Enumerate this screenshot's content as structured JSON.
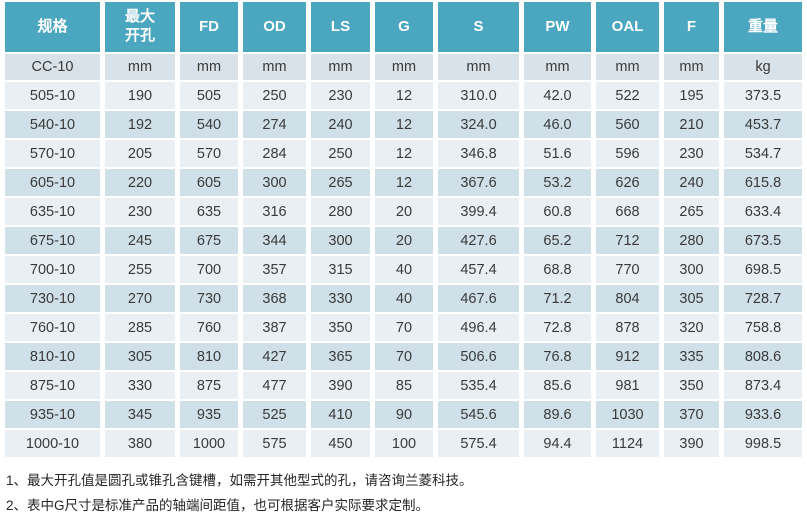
{
  "colors": {
    "header_bg": "#4ba7c0",
    "header_text": "#ffffff",
    "units_row_bg": "#d8e2e8",
    "row_light": "#e9eff2",
    "row_dark": "#cfe0e8",
    "cell_text": "#3a3a3a",
    "footnote_text": "#262626"
  },
  "table": {
    "headers": [
      "规格",
      "最大开孔",
      "FD",
      "OD",
      "LS",
      "G",
      "S",
      "PW",
      "OAL",
      "F",
      "重量"
    ],
    "units_row": [
      "CC-10",
      "mm",
      "mm",
      "mm",
      "mm",
      "mm",
      "mm",
      "mm",
      "mm",
      "mm",
      "kg"
    ],
    "rows": [
      [
        "505-10",
        "190",
        "505",
        "250",
        "230",
        "12",
        "310.0",
        "42.0",
        "522",
        "195",
        "373.5"
      ],
      [
        "540-10",
        "192",
        "540",
        "274",
        "240",
        "12",
        "324.0",
        "46.0",
        "560",
        "210",
        "453.7"
      ],
      [
        "570-10",
        "205",
        "570",
        "284",
        "250",
        "12",
        "346.8",
        "51.6",
        "596",
        "230",
        "534.7"
      ],
      [
        "605-10",
        "220",
        "605",
        "300",
        "265",
        "12",
        "367.6",
        "53.2",
        "626",
        "240",
        "615.8"
      ],
      [
        "635-10",
        "230",
        "635",
        "316",
        "280",
        "20",
        "399.4",
        "60.8",
        "668",
        "265",
        "633.4"
      ],
      [
        "675-10",
        "245",
        "675",
        "344",
        "300",
        "20",
        "427.6",
        "65.2",
        "712",
        "280",
        "673.5"
      ],
      [
        "700-10",
        "255",
        "700",
        "357",
        "315",
        "40",
        "457.4",
        "68.8",
        "770",
        "300",
        "698.5"
      ],
      [
        "730-10",
        "270",
        "730",
        "368",
        "330",
        "40",
        "467.6",
        "71.2",
        "804",
        "305",
        "728.7"
      ],
      [
        "760-10",
        "285",
        "760",
        "387",
        "350",
        "70",
        "496.4",
        "72.8",
        "878",
        "320",
        "758.8"
      ],
      [
        "810-10",
        "305",
        "810",
        "427",
        "365",
        "70",
        "506.6",
        "76.8",
        "912",
        "335",
        "808.6"
      ],
      [
        "875-10",
        "330",
        "875",
        "477",
        "390",
        "85",
        "535.4",
        "85.6",
        "981",
        "350",
        "873.4"
      ],
      [
        "935-10",
        "345",
        "935",
        "525",
        "410",
        "90",
        "545.6",
        "89.6",
        "1030",
        "370",
        "933.6"
      ],
      [
        "1000-10",
        "380",
        "1000",
        "575",
        "450",
        "100",
        "575.4",
        "94.4",
        "1124",
        "390",
        "998.5"
      ]
    ]
  },
  "footnotes": [
    "1、最大开孔值是圆孔或锥孔含键槽，如需开其他型式的孔，请咨询兰菱科技。",
    "2、表中G尺寸是标准产品的轴端间距值，也可根据客户实际要求定制。"
  ]
}
